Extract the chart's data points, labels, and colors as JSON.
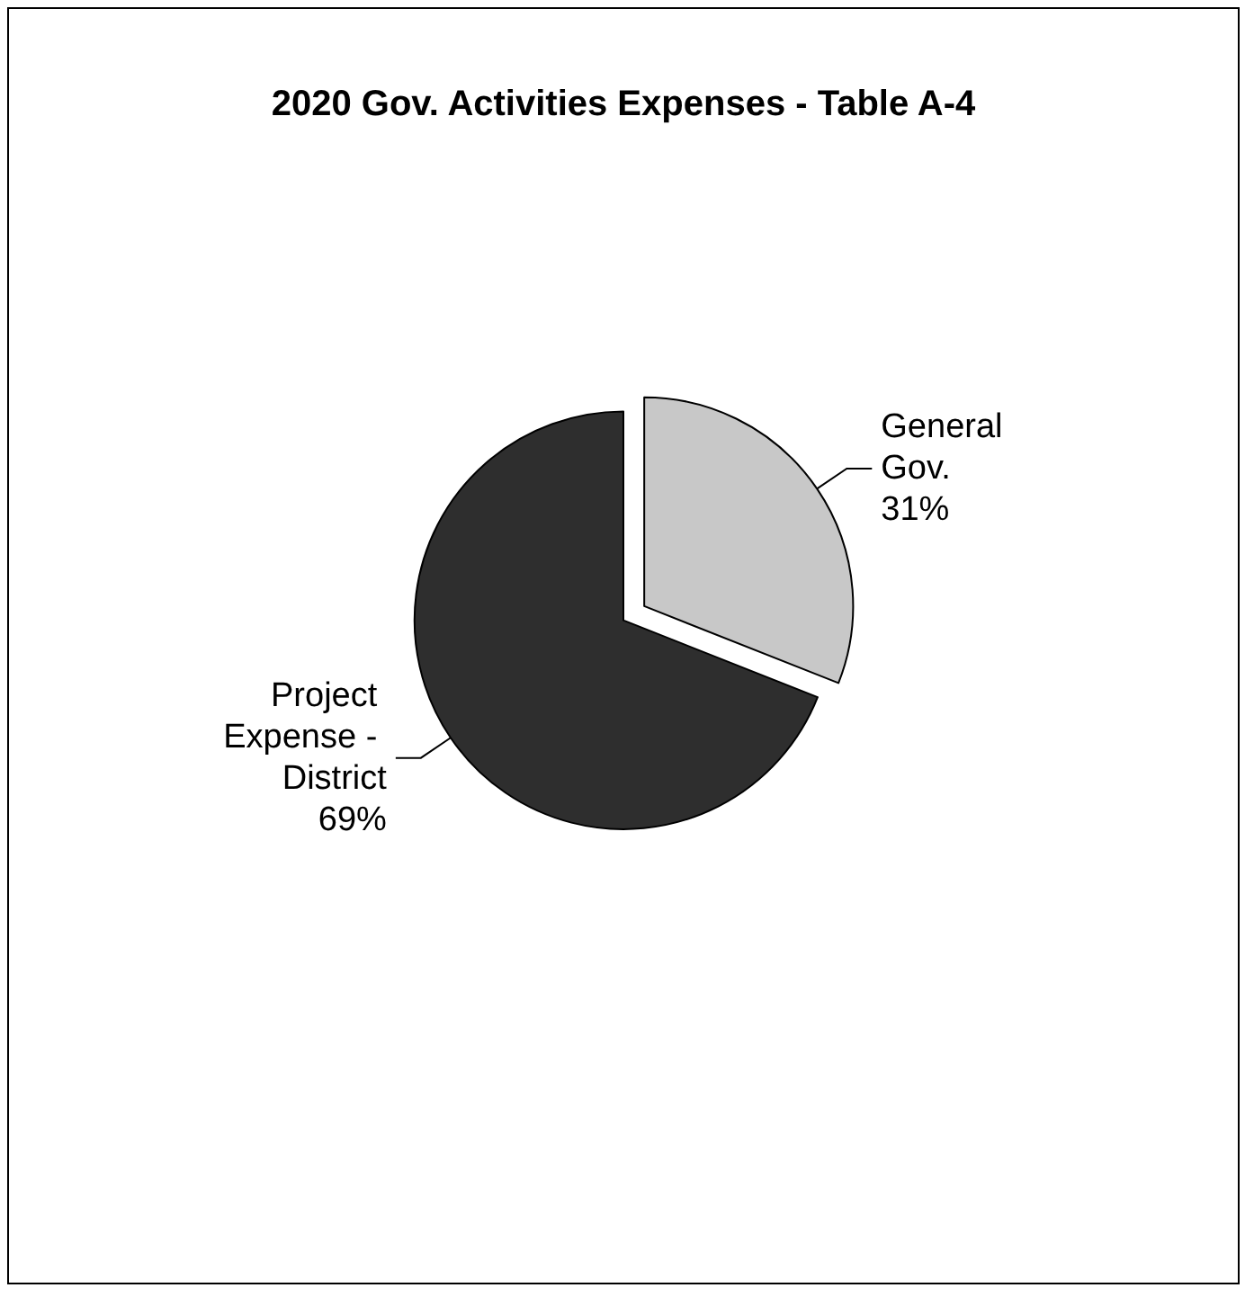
{
  "chart_data": {
    "type": "pie",
    "title": "2020 Gov. Activities Expenses - Table A-4",
    "categories": [
      "General Gov.",
      "Project Expense - District"
    ],
    "values": [
      31,
      69
    ],
    "value_labels": [
      "31%",
      "69%"
    ],
    "colors": [
      "#c8c8c8",
      "#2e2e2e"
    ]
  }
}
